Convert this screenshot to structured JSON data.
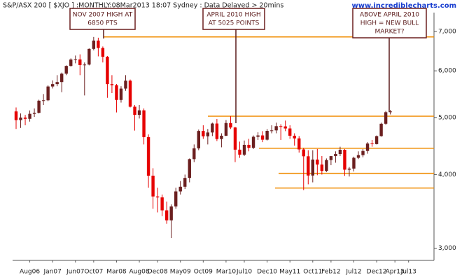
{
  "chart_data": {
    "type": "candlestick",
    "title": "S&P/ASX 200 [ $XJO ] :MONTHLY:08Mar2013 18:07 Sydney : Data Delayed > 20mins",
    "watermark": "www.incrediblecharts.com",
    "log_scale": true,
    "ylim": [
      2860,
      7850
    ],
    "yticks": [
      {
        "value": 3000,
        "label": "3,000"
      },
      {
        "value": 4000,
        "label": "4,000"
      },
      {
        "value": 5000,
        "label": "5,000"
      },
      {
        "value": 6000,
        "label": "6,000"
      },
      {
        "value": 7000,
        "label": "7,000"
      }
    ],
    "up_color": "#6b1f1f",
    "down_color": "#e60000",
    "line_color": "#f08c00",
    "categories": [
      null,
      null,
      null,
      "Aug06",
      null,
      null,
      null,
      null,
      "Jan07",
      null,
      null,
      null,
      null,
      "Jun07",
      null,
      null,
      null,
      "Oct07",
      null,
      null,
      null,
      null,
      "Mar08",
      null,
      null,
      null,
      null,
      "Aug08",
      null,
      null,
      null,
      "Dec08",
      null,
      null,
      null,
      null,
      "May09",
      null,
      null,
      null,
      null,
      "Oct09",
      null,
      null,
      null,
      null,
      "Mar10",
      null,
      null,
      null,
      "Jul10",
      null,
      null,
      null,
      null,
      "Dec10",
      null,
      null,
      null,
      null,
      "May11",
      null,
      null,
      null,
      null,
      "Oct11",
      null,
      null,
      null,
      "Feb12",
      null,
      null,
      null,
      null,
      "Jul12",
      null,
      null,
      null,
      null,
      "Dec12",
      null,
      null,
      null,
      "Apr13",
      null,
      null,
      "Jul13"
    ],
    "open": [
      5120,
      4949,
      4999,
      4974,
      5072,
      5092,
      5339,
      5348,
      5644,
      5697,
      5743,
      5934,
      6117,
      6271,
      6274,
      6138,
      6149,
      6538,
      6754,
      6560,
      6340,
      5697,
      5673,
      5355,
      5598,
      5774,
      5215,
      5052,
      5142,
      4631,
      3983,
      3672,
      3659,
      3478,
      3345,
      3532,
      3745,
      3814,
      3948,
      4249,
      4432,
      4743,
      4646,
      4715,
      4883,
      4596,
      4656,
      4893,
      4808,
      4409,
      4324,
      4493,
      4441,
      4637,
      4661,
      4584,
      4745,
      4754,
      4833,
      4829,
      4790,
      4656,
      4608,
      4413,
      4296,
      3985,
      4242,
      4160,
      4057,
      4233,
      4299,
      4335,
      4407,
      4077,
      4095,
      4271,
      4316,
      4387,
      4517,
      4506,
      4649,
      4879,
      5104,
      null,
      null,
      null,
      null
    ],
    "high": [
      5200,
      5080,
      5050,
      5140,
      5180,
      5360,
      5480,
      5670,
      5780,
      5900,
      5960,
      6130,
      6300,
      6370,
      6400,
      6200,
      6550,
      6850,
      6830,
      6600,
      6360,
      5900,
      5700,
      5650,
      5900,
      5800,
      5250,
      5250,
      5180,
      4680,
      4100,
      3800,
      3700,
      3600,
      3560,
      3800,
      3900,
      4000,
      4260,
      4500,
      4770,
      4850,
      4780,
      4900,
      4970,
      4700,
      4950,
      5025,
      4820,
      4550,
      4570,
      4600,
      4660,
      4720,
      4740,
      4780,
      4850,
      4900,
      4870,
      4940,
      4850,
      4700,
      4650,
      4440,
      4400,
      4400,
      4420,
      4300,
      4260,
      4300,
      4380,
      4460,
      4420,
      4120,
      4290,
      4380,
      4420,
      4540,
      4580,
      4660,
      4900,
      5130,
      5150,
      null,
      null,
      null,
      null
    ],
    "low": [
      4780,
      4800,
      4850,
      4920,
      5010,
      5080,
      5250,
      5330,
      5600,
      5650,
      5520,
      5900,
      6100,
      6180,
      5900,
      5450,
      6130,
      6500,
      6350,
      6200,
      5400,
      5500,
      5100,
      5300,
      5550,
      5200,
      4750,
      4980,
      4500,
      3800,
      3500,
      3450,
      3400,
      3300,
      3121,
      3500,
      3700,
      3780,
      3880,
      4200,
      4400,
      4600,
      4500,
      4650,
      4560,
      4450,
      4650,
      4780,
      4200,
      4270,
      4300,
      4380,
      4420,
      4580,
      4540,
      4570,
      4700,
      4700,
      4580,
      4740,
      4600,
      4480,
      4360,
      3765,
      3850,
      3880,
      3990,
      4000,
      4040,
      4150,
      4190,
      4300,
      3980,
      3970,
      4050,
      4250,
      4280,
      4340,
      4460,
      4500,
      4640,
      4860,
      5060,
      null,
      null,
      null,
      null
    ],
    "close": [
      4949,
      4999,
      4974,
      5072,
      5092,
      5339,
      5348,
      5644,
      5697,
      5743,
      5934,
      6117,
      6271,
      6274,
      6138,
      6149,
      6538,
      6754,
      6560,
      6340,
      5697,
      5673,
      5355,
      5598,
      5774,
      5215,
      5052,
      5142,
      4631,
      3983,
      3672,
      3659,
      3478,
      3345,
      3532,
      3745,
      3814,
      3948,
      4249,
      4432,
      4743,
      4646,
      4715,
      4883,
      4596,
      4656,
      4893,
      4808,
      4409,
      4324,
      4493,
      4441,
      4637,
      4661,
      4584,
      4745,
      4754,
      4833,
      4829,
      4790,
      4656,
      4608,
      4413,
      4296,
      3985,
      4242,
      4160,
      4057,
      4233,
      4299,
      4335,
      4407,
      4077,
      4095,
      4271,
      4316,
      4387,
      4517,
      4506,
      4649,
      4879,
      5104,
      5120,
      null,
      null,
      null,
      null
    ],
    "hlines": [
      6850,
      5025,
      4434,
      4019,
      3795
    ],
    "annotations": [
      {
        "lines": [
          "NOV 2007 HIGH AT",
          "6850 PTS"
        ]
      },
      {
        "lines": [
          "APRIL 2010 HIGH",
          "AT 5025 POINTS"
        ]
      },
      {
        "lines": [
          "ABOVE APRIL 2010",
          "HIGH = NEW BULL",
          "MARKET?"
        ]
      }
    ]
  }
}
